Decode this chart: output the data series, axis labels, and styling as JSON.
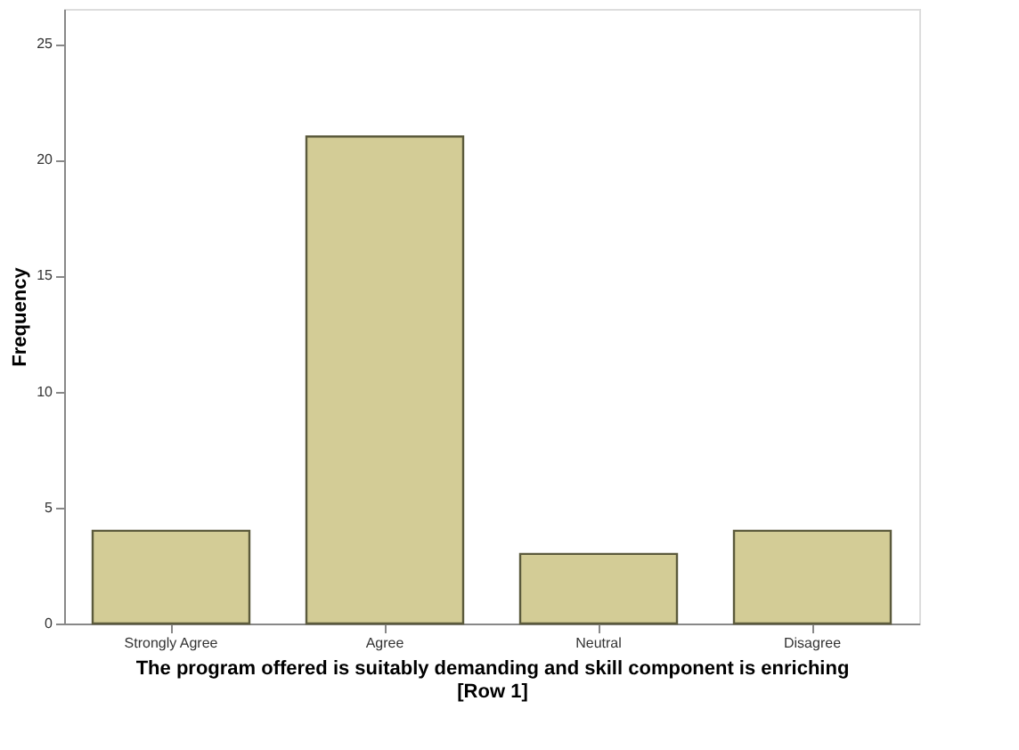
{
  "chart_data": {
    "type": "bar",
    "categories": [
      "Strongly Agree",
      "Agree",
      "Neutral",
      "Disagree"
    ],
    "values": [
      4,
      21,
      3,
      4
    ],
    "color": "#d3cc96",
    "xlabel": "The program offered is suitably demanding and skill component is enriching\n[Row 1]",
    "ylabel": "Frequency",
    "ylim": [
      0,
      26.5
    ],
    "yticks": [
      0,
      5,
      10,
      15,
      20,
      25
    ],
    "grid": false
  }
}
